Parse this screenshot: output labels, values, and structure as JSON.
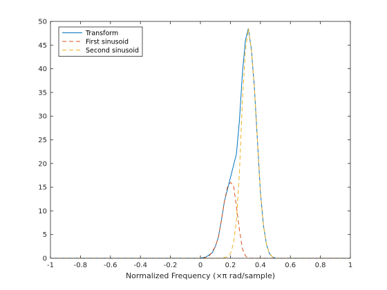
{
  "chart_data": {
    "type": "line",
    "title": "",
    "xlabel": "Normalized Frequency (×π rad/sample)",
    "ylabel": "",
    "xlim": [
      -1,
      1
    ],
    "ylim": [
      0,
      50
    ],
    "x_ticks": [
      -1,
      -0.8,
      -0.6,
      -0.4,
      -0.2,
      0,
      0.2,
      0.4,
      0.6,
      0.8,
      1
    ],
    "x_tick_labels": [
      "-1",
      "-0.8",
      "-0.6",
      "-0.4",
      "-0.2",
      "0",
      "0.2",
      "0.4",
      "0.6",
      "0.8",
      "1"
    ],
    "y_ticks": [
      0,
      5,
      10,
      15,
      20,
      25,
      30,
      35,
      40,
      45,
      50
    ],
    "y_tick_labels": [
      "0",
      "5",
      "10",
      "15",
      "20",
      "25",
      "30",
      "35",
      "40",
      "45",
      "50"
    ],
    "grid": false,
    "legend_position": "top-left",
    "series": [
      {
        "name": "Transform",
        "style": "solid",
        "color": "#0072bd",
        "x": [
          -1,
          0.0,
          0.04,
          0.08,
          0.1,
          0.12,
          0.14,
          0.16,
          0.18,
          0.2,
          0.22,
          0.24,
          0.26,
          0.28,
          0.3,
          0.32,
          0.34,
          0.36,
          0.38,
          0.4,
          0.42,
          0.44,
          0.46,
          0.48,
          0.5,
          1
        ],
        "y": [
          0,
          0,
          0.3,
          1.2,
          2.5,
          4.5,
          8,
          12,
          14.5,
          17,
          19.5,
          22,
          29,
          39,
          46,
          48.5,
          44,
          36,
          25,
          14,
          7,
          3,
          1,
          0.3,
          0,
          0
        ]
      },
      {
        "name": "First sinusoid",
        "style": "dashed",
        "color": "#d95319",
        "x": [
          -1,
          0.02,
          0.06,
          0.1,
          0.12,
          0.14,
          0.16,
          0.18,
          0.2,
          0.22,
          0.24,
          0.26,
          0.28,
          0.3,
          0.32,
          1
        ],
        "y": [
          0,
          0,
          0.5,
          2.5,
          4.5,
          8,
          12,
          15,
          16,
          15.5,
          11,
          6,
          2,
          0.5,
          0,
          0
        ]
      },
      {
        "name": "Second sinusoid",
        "style": "dashed",
        "color": "#edb120",
        "x": [
          -1,
          0.14,
          0.18,
          0.2,
          0.22,
          0.24,
          0.26,
          0.28,
          0.3,
          0.32,
          0.34,
          0.36,
          0.38,
          0.4,
          0.42,
          0.44,
          0.46,
          0.48,
          0.5,
          1
        ],
        "y": [
          0,
          0,
          0.3,
          1,
          3,
          8,
          18,
          33,
          44,
          48.5,
          44,
          36,
          25,
          14,
          7,
          3,
          1,
          0.3,
          0,
          0
        ]
      }
    ]
  }
}
